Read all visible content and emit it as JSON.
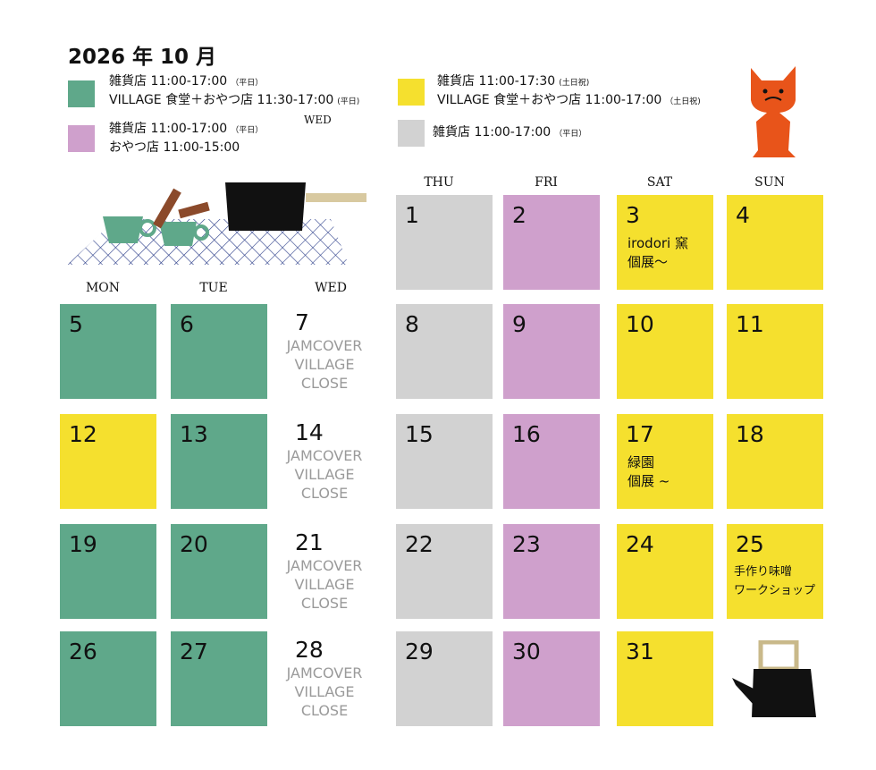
{
  "title": "2026 年 10 月",
  "stray_label": "WED",
  "legend": [
    {
      "color": "#5fa88a",
      "lines": [
        {
          "text": "雑貨店 11:00-17:00",
          "note": "（平日）"
        },
        {
          "text": "VILLAGE 食堂＋おやつ店 11:30-17:00",
          "note": "(平日)"
        }
      ]
    },
    {
      "color": "#cfa0cc",
      "lines": [
        {
          "text": "雑貨店 11:00-17:00",
          "note": "（平日）"
        },
        {
          "text": "おやつ店 11:00-15:00"
        }
      ]
    },
    {
      "color": "#f5e02e",
      "lines": [
        {
          "text": "雑貨店 11:00-17:30",
          "note": "(土日祝)"
        },
        {
          "text": "VILLAGE 食堂＋おやつ店 11:00-17:00",
          "note": "（土日祝)"
        }
      ]
    },
    {
      "color": "#d2d2d2",
      "lines": [
        {
          "text": "雑貨店 11:00-17:00",
          "note": "（平日）"
        }
      ]
    }
  ],
  "weekdays": [
    "MON",
    "TUE",
    "WED",
    "THU",
    "FRI",
    "SAT",
    "SUN"
  ],
  "days": [
    {
      "label": 1,
      "color": "#d2d2d2"
    },
    {
      "label": 2,
      "color": "#cfa0cc"
    },
    {
      "label": 3,
      "color": "#f5e02e",
      "notes": [
        "irodori 窯",
        "個展～"
      ]
    },
    {
      "label": 4,
      "color": "#f5e02e"
    },
    {
      "label": 5,
      "color": "#5fa88a"
    },
    {
      "label": 6,
      "color": "#5fa88a"
    },
    {
      "label": 7,
      "notes": [
        "JAMCOVER",
        "VILLAGE",
        "CLOSE"
      ]
    },
    {
      "label": 8,
      "color": "#d2d2d2"
    },
    {
      "label": 9,
      "color": "#cfa0cc"
    },
    {
      "label": 10,
      "color": "#f5e02e"
    },
    {
      "label": 11,
      "color": "#f5e02e"
    },
    {
      "label": 12,
      "color": "#f5e02e"
    },
    {
      "label": 13,
      "color": "#5fa88a"
    },
    {
      "label": 14,
      "notes": [
        "JAMCOVER",
        "VILLAGE",
        "CLOSE"
      ]
    },
    {
      "label": 15,
      "color": "#d2d2d2"
    },
    {
      "label": 16,
      "color": "#cfa0cc"
    },
    {
      "label": 17,
      "color": "#f5e02e",
      "notes": [
        "緑園",
        "個展 ~"
      ]
    },
    {
      "label": 18,
      "color": "#f5e02e"
    },
    {
      "label": 19,
      "color": "#5fa88a"
    },
    {
      "label": 20,
      "color": "#5fa88a"
    },
    {
      "label": 21,
      "notes": [
        "JAMCOVER",
        "VILLAGE",
        "CLOSE"
      ]
    },
    {
      "label": 22,
      "color": "#d2d2d2"
    },
    {
      "label": 23,
      "color": "#cfa0cc"
    },
    {
      "label": 24,
      "color": "#f5e02e"
    },
    {
      "label": 25,
      "color": "#f5e02e",
      "notes": [
        "手作り味噌",
        "ワークショップ"
      ]
    },
    {
      "label": 26,
      "color": "#5fa88a"
    },
    {
      "label": 27,
      "color": "#5fa88a"
    },
    {
      "label": 28,
      "notes": [
        "JAMCOVER",
        "VILLAGE",
        "CLOSE"
      ]
    },
    {
      "label": 29,
      "color": "#d2d2d2"
    },
    {
      "label": 30,
      "color": "#cfa0cc"
    },
    {
      "label": 31,
      "color": "#f5e02e"
    }
  ]
}
